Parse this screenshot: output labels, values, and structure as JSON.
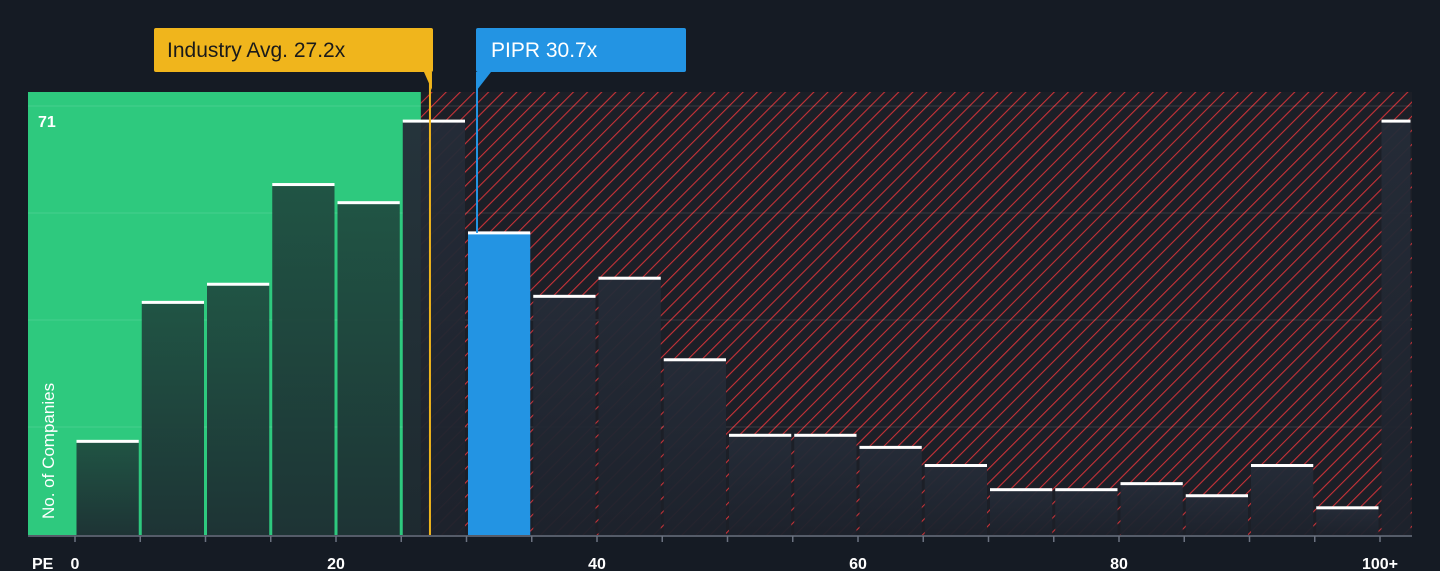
{
  "chart_data": {
    "type": "bar",
    "xlabel": "PE",
    "ylabel": "No. of Companies",
    "y_max_label": "71",
    "ylim": [
      0,
      71
    ],
    "xlim": [
      0,
      102.5
    ],
    "x_ticks": [
      {
        "value": 0,
        "label": "0"
      },
      {
        "value": 20,
        "label": "20"
      },
      {
        "value": 40,
        "label": "40"
      },
      {
        "value": 60,
        "label": "60"
      },
      {
        "value": 80,
        "label": "80"
      },
      {
        "value": 100,
        "label": "100+"
      }
    ],
    "bin_width": 5,
    "bins": [
      {
        "x_start": 0,
        "x_end": 5,
        "value": 15.5
      },
      {
        "x_start": 5,
        "x_end": 10,
        "value": 38.5
      },
      {
        "x_start": 10,
        "x_end": 15,
        "value": 41.5
      },
      {
        "x_start": 15,
        "x_end": 20,
        "value": 58
      },
      {
        "x_start": 20,
        "x_end": 25,
        "value": 55
      },
      {
        "x_start": 25,
        "x_end": 30,
        "value": 68.5
      },
      {
        "x_start": 30,
        "x_end": 35,
        "value": 50
      },
      {
        "x_start": 35,
        "x_end": 40,
        "value": 39.5
      },
      {
        "x_start": 40,
        "x_end": 45,
        "value": 42.5
      },
      {
        "x_start": 45,
        "x_end": 50,
        "value": 29
      },
      {
        "x_start": 50,
        "x_end": 55,
        "value": 16.5
      },
      {
        "x_start": 55,
        "x_end": 60,
        "value": 16.5
      },
      {
        "x_start": 60,
        "x_end": 65,
        "value": 14.5
      },
      {
        "x_start": 65,
        "x_end": 70,
        "value": 11.5
      },
      {
        "x_start": 70,
        "x_end": 75,
        "value": 7.5
      },
      {
        "x_start": 75,
        "x_end": 80,
        "value": 7.5
      },
      {
        "x_start": 80,
        "x_end": 85,
        "value": 8.5
      },
      {
        "x_start": 85,
        "x_end": 90,
        "value": 6.5
      },
      {
        "x_start": 90,
        "x_end": 95,
        "value": 11.5
      },
      {
        "x_start": 95,
        "x_end": 100,
        "value": 4.5
      },
      {
        "x_start": 100,
        "x_end": 102.5,
        "value": 68.5
      }
    ],
    "industry_avg": {
      "label": "Industry Avg. 27.2x",
      "value": 27.2
    },
    "company": {
      "label": "PIPR 30.7x",
      "ticker": "PIPR",
      "value": 30.7,
      "bin_start": 30
    },
    "fair_zone_end": 26.5,
    "colors": {
      "background": "#151b24",
      "fair_zone": "#2ec97e",
      "bar_dark": "#1f2a33",
      "bar_in_fair": "#1e4a3f",
      "company_bar": "#2394e3",
      "industry_callout": "#f0b51c",
      "hatch": "#d6393f",
      "bar_cap": "#ffffff"
    }
  }
}
